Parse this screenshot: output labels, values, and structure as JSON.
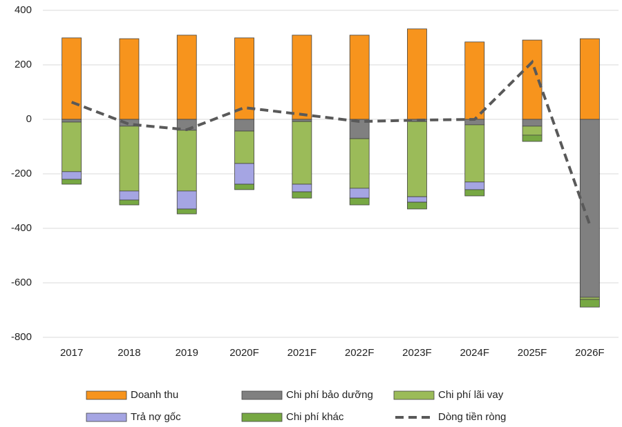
{
  "chart_data": {
    "type": "bar",
    "stacked": true,
    "categories": [
      "2017",
      "2018",
      "2019",
      "2020F",
      "2021F",
      "2022F",
      "2023F",
      "2024F",
      "2025F",
      "2026F"
    ],
    "series": [
      {
        "name": "Doanh thu",
        "color": "#f7941d",
        "values": [
          299,
          296,
          309,
          299,
          309,
          309,
          332,
          284,
          291,
          296
        ]
      },
      {
        "name": "Chi phí bảo dưỡng",
        "color": "#808080",
        "values": [
          -10,
          -25,
          -40,
          -43,
          -8,
          -71,
          -8,
          -20,
          -25,
          -653
        ]
      },
      {
        "name": "Chi phí lãi vay",
        "color": "#9bbb59",
        "values": [
          -182,
          -238,
          -223,
          -119,
          -230,
          -182,
          -276,
          -210,
          -33,
          -8
        ]
      },
      {
        "name": "Trả nợ gốc",
        "color": "#a5a5e3",
        "values": [
          -28,
          -33,
          -66,
          -76,
          -28,
          -36,
          -20,
          -28,
          0,
          0
        ]
      },
      {
        "name": "Chi phí khác",
        "color": "#77a843",
        "values": [
          -18,
          -18,
          -18,
          -20,
          -23,
          -25,
          -25,
          -23,
          -23,
          -28
        ]
      },
      {
        "name": "Dòng tiền ròng",
        "color": "#595959",
        "type": "line",
        "values": [
          63,
          -18,
          -38,
          43,
          18,
          -8,
          -3,
          0,
          210,
          -387
        ]
      }
    ],
    "ylim": [
      -800,
      400
    ],
    "yticks": [
      -800,
      -600,
      -400,
      -200,
      0,
      200,
      400
    ],
    "grid": true
  }
}
